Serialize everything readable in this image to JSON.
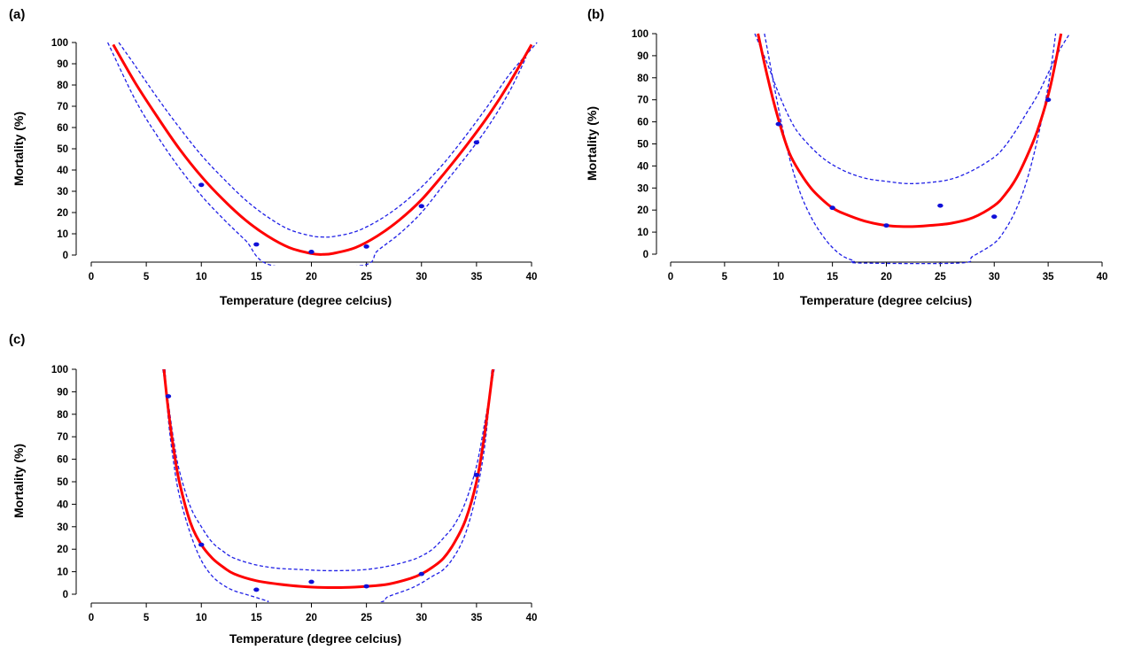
{
  "chart_data": [
    {
      "panel_label": "(a)",
      "type": "line",
      "xlabel": "Temperature (degree celcius)",
      "ylabel": "Mortality (%)",
      "xlim": [
        0,
        40
      ],
      "ylim": [
        0,
        100
      ],
      "xticks": [
        0,
        5,
        10,
        15,
        20,
        25,
        30,
        35,
        40
      ],
      "yticks": [
        0,
        10,
        20,
        30,
        40,
        50,
        60,
        70,
        80,
        90,
        100
      ],
      "grid": false,
      "colors": {
        "fit": "#ff0000",
        "ci": "#1f1fe6",
        "points": "#1010d8"
      },
      "points": {
        "x": [
          10,
          15,
          20,
          25,
          30,
          35
        ],
        "y": [
          33,
          5,
          1.5,
          4,
          23,
          53
        ]
      },
      "fit": {
        "x": [
          2,
          4,
          6,
          8,
          10,
          12,
          14,
          16,
          18,
          20,
          21,
          22,
          24,
          26,
          28,
          30,
          32,
          34,
          36,
          38,
          40
        ],
        "y": [
          99,
          81,
          65,
          50,
          37,
          26,
          16.5,
          9,
          3.5,
          0.7,
          0.3,
          0.8,
          3.5,
          9,
          16.5,
          26,
          38,
          51,
          65,
          81,
          99
        ]
      },
      "ci_upper": {
        "x": [
          2.5,
          4,
          6,
          8,
          10,
          12,
          14,
          16,
          18,
          20,
          21,
          22,
          24,
          26,
          28,
          30,
          32,
          34,
          36,
          38,
          40.5
        ],
        "y": [
          100,
          89,
          74,
          60,
          47,
          36,
          26,
          18,
          12,
          9,
          8.5,
          8.7,
          11,
          16,
          23,
          32,
          43,
          56,
          70,
          85,
          100
        ]
      },
      "ci_lower": {
        "x": [
          1.5,
          4,
          6,
          8,
          10,
          12,
          14,
          16.5,
          24.5,
          26,
          28,
          30,
          32,
          34,
          36,
          38,
          39.5
        ],
        "y": [
          100,
          73,
          56,
          41,
          28,
          17,
          7,
          -5,
          -5,
          2,
          10,
          20,
          33,
          46,
          60,
          77,
          93
        ]
      }
    },
    {
      "panel_label": "(b)",
      "type": "line",
      "xlabel": "Temperature (degree celcius)",
      "ylabel": "Mortality (%)",
      "xlim": [
        0,
        40
      ],
      "ylim": [
        0,
        100
      ],
      "xticks": [
        0,
        5,
        10,
        15,
        20,
        25,
        30,
        35,
        40
      ],
      "yticks": [
        0,
        10,
        20,
        30,
        40,
        50,
        60,
        70,
        80,
        90,
        100
      ],
      "grid": false,
      "colors": {
        "fit": "#ff0000",
        "ci": "#1f1fe6",
        "points": "#1010d8"
      },
      "points": {
        "x": [
          10,
          15,
          20,
          25,
          30,
          35
        ],
        "y": [
          59,
          21,
          13,
          22,
          17,
          70
        ]
      },
      "fit": {
        "x": [
          8.1,
          9,
          10,
          11,
          12,
          13,
          14,
          15,
          16,
          18,
          20,
          22,
          24,
          26,
          28,
          30,
          31,
          32,
          33,
          34,
          35,
          35.6,
          36.2
        ],
        "y": [
          100,
          80,
          61,
          46,
          37,
          30,
          25,
          21,
          18.5,
          15,
          13,
          12.5,
          13,
          14,
          16.5,
          22,
          27,
          34,
          44,
          56,
          72,
          85,
          100
        ]
      },
      "ci_upper": {
        "x": [
          7.8,
          9,
          10,
          11,
          12,
          14,
          16,
          18,
          20,
          22,
          24,
          26,
          28,
          30,
          31,
          32,
          33,
          34,
          35,
          36,
          37
        ],
        "y": [
          100,
          86,
          73,
          62,
          54,
          44,
          38,
          34.5,
          33,
          32,
          32.5,
          34,
          38,
          44,
          49,
          56,
          64,
          72,
          82,
          92,
          100
        ]
      },
      "ci_lower": {
        "x": [
          8.7,
          10,
          11,
          12,
          13,
          14,
          15,
          16,
          17,
          17.5,
          26.8,
          28,
          30,
          31,
          32,
          33,
          34,
          35,
          35.7
        ],
        "y": [
          100,
          66,
          44,
          28,
          17,
          9,
          3,
          -1,
          -3,
          -4,
          -4,
          -1,
          5,
          11,
          20,
          33,
          52,
          76,
          100
        ]
      }
    },
    {
      "panel_label": "(c)",
      "type": "line",
      "xlabel": "Temperature (degree celcius)",
      "ylabel": "Mortality (%)",
      "xlim": [
        0,
        40
      ],
      "ylim": [
        0,
        100
      ],
      "xticks": [
        0,
        5,
        10,
        15,
        20,
        25,
        30,
        35,
        40
      ],
      "yticks": [
        0,
        10,
        20,
        30,
        40,
        50,
        60,
        70,
        80,
        90,
        100
      ],
      "grid": false,
      "colors": {
        "fit": "#ff0000",
        "ci": "#1f1fe6",
        "points": "#1010d8"
      },
      "points": {
        "x": [
          7,
          10,
          15,
          20,
          25,
          30,
          35
        ],
        "y": [
          88,
          22,
          2,
          5.5,
          3.5,
          9,
          53
        ]
      },
      "fit": {
        "x": [
          6.6,
          7,
          7.5,
          8,
          9,
          10,
          11,
          12,
          13,
          15,
          17,
          19,
          21,
          23,
          25,
          27,
          29,
          30,
          31,
          32,
          33,
          34,
          35,
          35.7,
          36.5
        ],
        "y": [
          100,
          82,
          64,
          50,
          32,
          22,
          16,
          12,
          9,
          6,
          4.5,
          3.5,
          3,
          3,
          3.5,
          4.5,
          7,
          9,
          12,
          16,
          23,
          33,
          50,
          70,
          100
        ]
      },
      "ci_upper": {
        "x": [
          6.5,
          7,
          7.5,
          8,
          9,
          10,
          11,
          12,
          13,
          15,
          17,
          19,
          21,
          23,
          25,
          27,
          29,
          30,
          31,
          32,
          33,
          34,
          35,
          35.7,
          36.6
        ],
        "y": [
          100,
          85,
          68,
          55,
          39,
          30,
          23,
          19,
          16,
          13,
          11.5,
          11,
          10.5,
          10.5,
          11,
          12.5,
          15,
          17,
          20,
          25,
          31,
          41,
          57,
          75,
          100
        ]
      },
      "ci_lower": {
        "x": [
          6.7,
          7,
          7.5,
          8,
          9,
          10,
          11,
          12,
          13,
          14,
          15,
          16,
          17,
          25.5,
          27,
          29,
          30,
          31,
          32,
          33,
          34,
          35,
          35.8,
          36.4
        ],
        "y": [
          100,
          78,
          58,
          44,
          27,
          15,
          8,
          4,
          1.5,
          0,
          -1.5,
          -3,
          -4,
          -4,
          -1,
          2.5,
          5,
          8,
          11,
          17,
          27,
          45,
          68,
          100
        ]
      }
    }
  ]
}
